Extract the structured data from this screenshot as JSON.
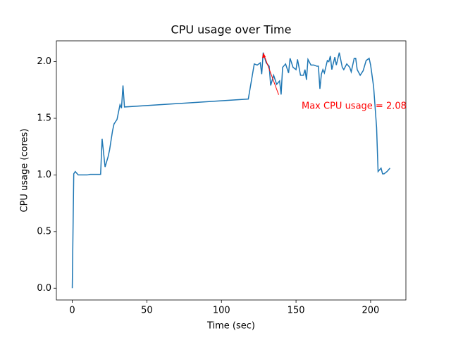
{
  "chart_data": {
    "type": "line",
    "title": "CPU usage over Time",
    "x_label": "Time (sec)",
    "y_label": "CPU usage (cores)",
    "annotation": "Max CPU usage = 2.08",
    "annotation_color": "#ff0000",
    "x": [
      0,
      1,
      2,
      4,
      6,
      8,
      10,
      12,
      14,
      16,
      18,
      19,
      20,
      22,
      24,
      25,
      27,
      28,
      30,
      32,
      33,
      34,
      35,
      118,
      122,
      124,
      126,
      127,
      128,
      130,
      132,
      133,
      135,
      137,
      139,
      140,
      141,
      143,
      145,
      146,
      148,
      150,
      151,
      153,
      155,
      156,
      157,
      158,
      160,
      162,
      164,
      165,
      166,
      167,
      168,
      169,
      171,
      172,
      173,
      174,
      176,
      177,
      179,
      181,
      182,
      184,
      186,
      187,
      189,
      190,
      191,
      193,
      195,
      197,
      199,
      200,
      202,
      204,
      205,
      207,
      208,
      209,
      211,
      213
    ],
    "series": [
      {
        "name": "CPU usage",
        "color": "#1f77b4",
        "values": [
          0,
          1.01,
          1.03,
          1.0,
          1.0,
          1.0,
          1.0,
          1.005,
          1.005,
          1.005,
          1.005,
          1.005,
          1.32,
          1.07,
          1.16,
          1.22,
          1.39,
          1.45,
          1.49,
          1.62,
          1.59,
          1.79,
          1.6,
          1.67,
          1.98,
          1.97,
          1.99,
          1.89,
          2.08,
          1.99,
          1.96,
          1.79,
          1.88,
          1.8,
          1.83,
          1.71,
          1.95,
          1.98,
          1.9,
          2.03,
          1.95,
          1.93,
          2.02,
          1.88,
          1.88,
          1.93,
          1.84,
          2.02,
          1.97,
          1.97,
          1.96,
          1.96,
          1.76,
          1.89,
          1.93,
          1.9,
          2.01,
          2.0,
          2.05,
          1.93,
          2.04,
          1.97,
          2.08,
          1.95,
          1.93,
          1.98,
          1.95,
          1.91,
          2.03,
          2.03,
          1.93,
          1.88,
          1.92,
          2.01,
          2.03,
          1.97,
          1.78,
          1.42,
          1.03,
          1.06,
          1.01,
          1.01,
          1.03,
          1.06
        ]
      }
    ],
    "xlim": [
      -10.65,
      223.65
    ],
    "xticks": [
      0,
      50,
      100,
      150,
      200
    ],
    "ylim": [
      -0.104,
      2.184
    ],
    "yticks": [
      {
        "value": 0,
        "label": "0.0"
      },
      {
        "value": 0.5,
        "label": "0.5"
      },
      {
        "value": 1,
        "label": "1.0"
      },
      {
        "value": 1.5,
        "label": "1.5"
      },
      {
        "value": 2,
        "label": "2.0"
      }
    ]
  }
}
